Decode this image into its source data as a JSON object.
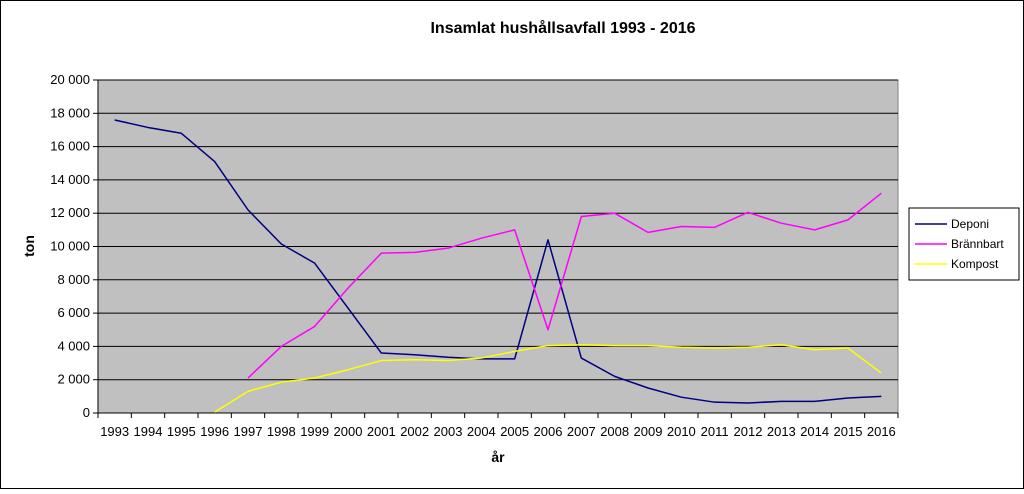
{
  "chart_data": {
    "type": "line",
    "title": "Insamlat hushållsavfall 1993 - 2016",
    "xlabel": "år",
    "ylabel": "ton",
    "categories": [
      "1993",
      "1994",
      "1995",
      "1996",
      "1997",
      "1998",
      "1999",
      "2000",
      "2001",
      "2002",
      "2003",
      "2004",
      "2005",
      "2006",
      "2007",
      "2008",
      "2009",
      "2010",
      "2011",
      "2012",
      "2013",
      "2014",
      "2015",
      "2016"
    ],
    "ylim": [
      0,
      20000
    ],
    "y_ticks": [
      0,
      2000,
      4000,
      6000,
      8000,
      10000,
      12000,
      14000,
      16000,
      18000,
      20000
    ],
    "y_tick_labels": [
      "0",
      "2 000",
      "4 000",
      "6 000",
      "8 000",
      "10 000",
      "12 000",
      "14 000",
      "16 000",
      "18 000",
      "20 000"
    ],
    "grid": true,
    "legend_position": "right",
    "plot_background": "#c0c0c0",
    "series": [
      {
        "name": "Deponi",
        "color": "#000080",
        "values": [
          17600,
          17150,
          16800,
          15100,
          12200,
          10150,
          9000,
          6300,
          3600,
          3500,
          3350,
          3250,
          3250,
          10400,
          3300,
          2200,
          1500,
          950,
          650,
          600,
          700,
          700,
          900,
          1000
        ]
      },
      {
        "name": "Brännbart",
        "color": "#ff00ff",
        "values": [
          null,
          null,
          null,
          null,
          2100,
          4000,
          5200,
          7500,
          9600,
          9650,
          9900,
          10500,
          11000,
          5000,
          11800,
          12000,
          10850,
          11200,
          11150,
          12050,
          11400,
          11000,
          11600,
          13200
        ]
      },
      {
        "name": "Kompost",
        "color": "#ffff00",
        "values": [
          null,
          null,
          null,
          50,
          1300,
          1850,
          2100,
          2600,
          3150,
          3200,
          3150,
          3300,
          3700,
          4050,
          4100,
          4050,
          4050,
          3950,
          3900,
          3950,
          4100,
          3800,
          3900,
          2400
        ]
      }
    ]
  }
}
